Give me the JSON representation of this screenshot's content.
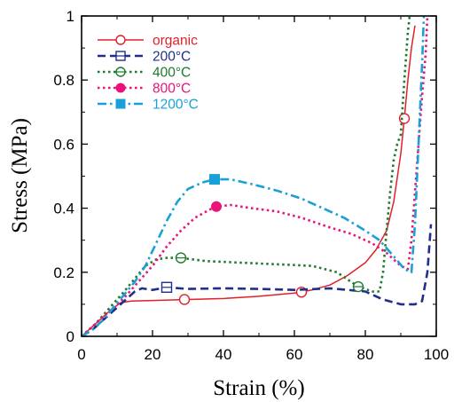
{
  "chart_data": {
    "type": "line",
    "xlabel": "Strain (%)",
    "ylabel": "Stress (MPa)",
    "xlim": [
      0,
      100
    ],
    "ylim": [
      0,
      1
    ],
    "x_ticks": [
      0,
      20,
      40,
      60,
      80,
      100
    ],
    "y_ticks": [
      0,
      0.2,
      0.4,
      0.6,
      0.8,
      1
    ],
    "x_tick_labels": [
      "0",
      "20",
      "40",
      "60",
      "80",
      "100"
    ],
    "y_tick_labels": [
      "0",
      "0.2",
      "0.4",
      "0.6",
      "0.8",
      "1"
    ],
    "grid": false,
    "legend_position": "top-left",
    "series": [
      {
        "name": "organic",
        "color": "#e0202a",
        "dash": "solid",
        "marker": "circle-open",
        "marker_points": [
          [
            29,
            0.115
          ],
          [
            62,
            0.138
          ],
          [
            91,
            0.68
          ]
        ],
        "points": [
          [
            0,
            0
          ],
          [
            2,
            0.02
          ],
          [
            5,
            0.05
          ],
          [
            8,
            0.08
          ],
          [
            11,
            0.105
          ],
          [
            14,
            0.11
          ],
          [
            20,
            0.112
          ],
          [
            30,
            0.115
          ],
          [
            40,
            0.118
          ],
          [
            50,
            0.125
          ],
          [
            60,
            0.135
          ],
          [
            65,
            0.145
          ],
          [
            70,
            0.16
          ],
          [
            75,
            0.19
          ],
          [
            80,
            0.23
          ],
          [
            83,
            0.27
          ],
          [
            86,
            0.33
          ],
          [
            88,
            0.42
          ],
          [
            90,
            0.57
          ],
          [
            91,
            0.68
          ],
          [
            92,
            0.8
          ],
          [
            93,
            0.9
          ],
          [
            94,
            0.97
          ]
        ]
      },
      {
        "name": "200°C",
        "color": "#1f2f8a",
        "dash": "dashed",
        "marker": "square-crossed",
        "marker_points": [
          [
            24,
            0.153
          ]
        ],
        "points": [
          [
            0,
            0
          ],
          [
            3,
            0.02
          ],
          [
            6,
            0.05
          ],
          [
            9,
            0.08
          ],
          [
            11,
            0.1
          ],
          [
            13,
            0.12
          ],
          [
            15,
            0.14
          ],
          [
            17,
            0.15
          ],
          [
            20,
            0.145
          ],
          [
            24,
            0.153
          ],
          [
            30,
            0.148
          ],
          [
            40,
            0.15
          ],
          [
            50,
            0.148
          ],
          [
            60,
            0.145
          ],
          [
            70,
            0.15
          ],
          [
            75,
            0.145
          ],
          [
            80,
            0.14
          ],
          [
            85,
            0.115
          ],
          [
            90,
            0.1
          ],
          [
            94,
            0.1
          ],
          [
            96,
            0.11
          ],
          [
            97.5,
            0.2
          ],
          [
            98.5,
            0.35
          ]
        ]
      },
      {
        "name": "400°C",
        "color": "#1f7a2f",
        "dash": "dotted",
        "marker": "circle-open-crossed",
        "marker_points": [
          [
            28,
            0.245
          ],
          [
            78,
            0.155
          ]
        ],
        "points": [
          [
            0,
            0
          ],
          [
            4,
            0.04
          ],
          [
            8,
            0.09
          ],
          [
            12,
            0.14
          ],
          [
            15,
            0.18
          ],
          [
            18,
            0.22
          ],
          [
            21,
            0.24
          ],
          [
            24,
            0.245
          ],
          [
            28,
            0.245
          ],
          [
            35,
            0.235
          ],
          [
            45,
            0.23
          ],
          [
            55,
            0.225
          ],
          [
            65,
            0.22
          ],
          [
            72,
            0.2
          ],
          [
            76,
            0.17
          ],
          [
            78,
            0.155
          ],
          [
            82,
            0.14
          ],
          [
            84,
            0.14
          ],
          [
            85,
            0.2
          ],
          [
            86,
            0.33
          ],
          [
            87,
            0.45
          ],
          [
            88,
            0.55
          ],
          [
            89,
            0.6
          ],
          [
            90,
            0.63
          ],
          [
            91,
            0.8
          ],
          [
            92,
            0.95
          ],
          [
            92.5,
            1.0
          ]
        ]
      },
      {
        "name": "800°C",
        "color": "#e8147a",
        "dash": "dotted",
        "marker": "circle-filled",
        "marker_points": [
          [
            38,
            0.405
          ]
        ],
        "points": [
          [
            0,
            0
          ],
          [
            4,
            0.04
          ],
          [
            8,
            0.08
          ],
          [
            12,
            0.12
          ],
          [
            16,
            0.17
          ],
          [
            20,
            0.22
          ],
          [
            24,
            0.28
          ],
          [
            28,
            0.33
          ],
          [
            32,
            0.37
          ],
          [
            36,
            0.395
          ],
          [
            38,
            0.405
          ],
          [
            42,
            0.41
          ],
          [
            48,
            0.4
          ],
          [
            55,
            0.39
          ],
          [
            62,
            0.37
          ],
          [
            70,
            0.34
          ],
          [
            76,
            0.32
          ],
          [
            82,
            0.29
          ],
          [
            86,
            0.26
          ],
          [
            88,
            0.24
          ],
          [
            90,
            0.22
          ],
          [
            92,
            0.21
          ],
          [
            93,
            0.3
          ],
          [
            94,
            0.45
          ],
          [
            95,
            0.6
          ],
          [
            96,
            0.75
          ],
          [
            97,
            0.88
          ],
          [
            97.5,
            1.0
          ]
        ]
      },
      {
        "name": "1200°C",
        "color": "#1aa0d8",
        "dash": "dashdot",
        "marker": "square-filled",
        "marker_points": [
          [
            37.5,
            0.49
          ]
        ],
        "points": [
          [
            0,
            0
          ],
          [
            3,
            0.02
          ],
          [
            6,
            0.05
          ],
          [
            9,
            0.09
          ],
          [
            12,
            0.13
          ],
          [
            15,
            0.17
          ],
          [
            18,
            0.22
          ],
          [
            21,
            0.29
          ],
          [
            24,
            0.36
          ],
          [
            27,
            0.42
          ],
          [
            30,
            0.46
          ],
          [
            34,
            0.48
          ],
          [
            37.5,
            0.49
          ],
          [
            42,
            0.49
          ],
          [
            48,
            0.475
          ],
          [
            55,
            0.455
          ],
          [
            62,
            0.43
          ],
          [
            68,
            0.4
          ],
          [
            74,
            0.37
          ],
          [
            80,
            0.33
          ],
          [
            84,
            0.3
          ],
          [
            88,
            0.25
          ],
          [
            91,
            0.21
          ],
          [
            93,
            0.2
          ],
          [
            94,
            0.35
          ],
          [
            95,
            0.6
          ],
          [
            96,
            0.85
          ],
          [
            96.5,
            1.0
          ]
        ]
      }
    ]
  }
}
